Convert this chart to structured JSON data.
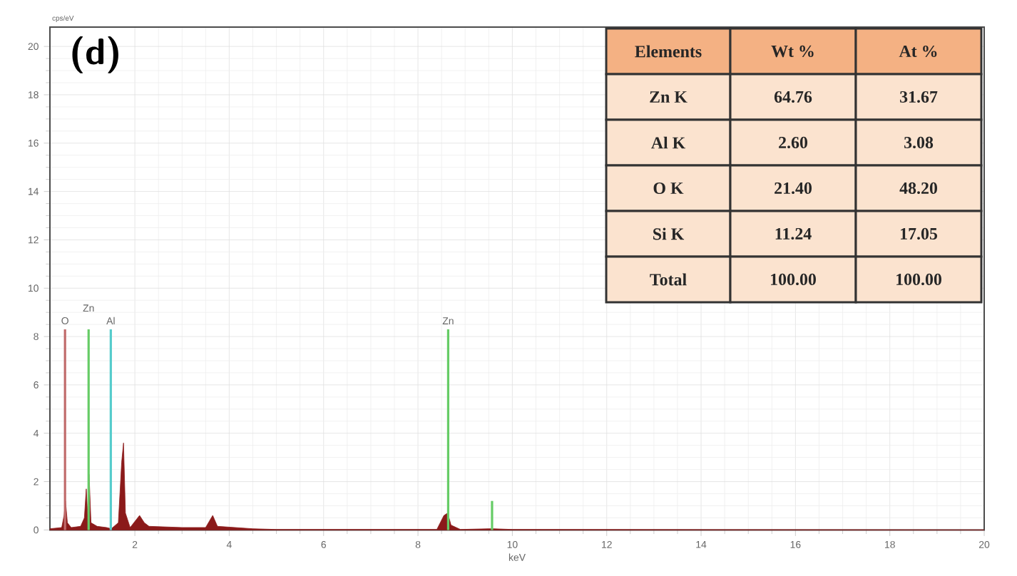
{
  "chart_data": {
    "type": "area",
    "xlabel": "keV",
    "ylabel": "cps/eV",
    "xlim": [
      0.2,
      20
    ],
    "ylim": [
      0,
      20.8
    ],
    "xticks": [
      2,
      4,
      6,
      8,
      10,
      12,
      14,
      16,
      18,
      20
    ],
    "yticks": [
      0,
      2,
      4,
      6,
      8,
      10,
      12,
      14,
      16,
      18,
      20
    ],
    "grid": true,
    "series": [
      {
        "color": "#8b1a1a",
        "x": [
          0.2,
          0.45,
          0.5,
          0.53,
          0.57,
          0.65,
          0.85,
          0.93,
          0.97,
          1.0,
          1.03,
          1.07,
          1.2,
          1.4,
          1.5,
          1.65,
          1.72,
          1.76,
          1.8,
          1.9,
          2.1,
          2.2,
          2.3,
          3.0,
          3.5,
          3.65,
          3.75,
          4.5,
          5,
          8.4,
          8.55,
          8.63,
          8.7,
          8.9,
          9.5,
          9.6,
          10,
          20
        ],
        "values": [
          0.05,
          0.1,
          0.6,
          1.2,
          0.3,
          0.1,
          0.15,
          0.5,
          1.7,
          0.6,
          2.3,
          0.3,
          0.15,
          0.1,
          0.05,
          0.3,
          2.8,
          3.6,
          0.7,
          0.1,
          0.6,
          0.3,
          0.15,
          0.1,
          0.1,
          0.6,
          0.15,
          0.05,
          0.02,
          0.02,
          0.6,
          0.7,
          0.2,
          0.02,
          0.05,
          0.05,
          0.02,
          0
        ]
      },
      {
        "type": "bar",
        "x": [
          0.52,
          1.02,
          1.49,
          8.64,
          9.57
        ],
        "values": [
          8.3,
          8.3,
          8.3,
          8.3,
          1.2
        ],
        "colors": [
          "#c06a6a",
          "#66cc66",
          "#55cccc",
          "#66cc66",
          "#66cc66"
        ]
      }
    ],
    "annotations": [
      "(d)",
      {
        "text": "O",
        "x": 0.52,
        "y": 8.3
      },
      {
        "text": "Zn",
        "x": 1.02,
        "y": 8.3
      },
      {
        "text": "Al",
        "x": 1.49,
        "y": 8.3
      },
      {
        "text": "Zn",
        "x": 8.64,
        "y": 8.3
      },
      "Elements",
      "Wt %",
      "At %",
      "Zn  K",
      "64.76",
      "31.67",
      "Al  K",
      "2.60",
      "3.08",
      "O  K",
      "21.40",
      "48.20",
      "Si  K",
      "11.24",
      "17.05",
      "Total",
      "100.00",
      "100.00"
    ]
  }
}
